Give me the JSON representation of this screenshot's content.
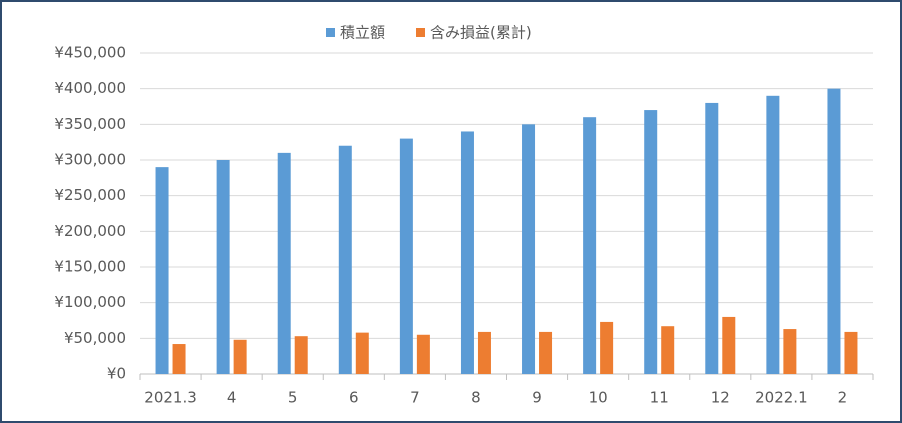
{
  "chart_data": {
    "type": "bar",
    "categories": [
      "2021.3",
      "4",
      "5",
      "6",
      "7",
      "8",
      "9",
      "10",
      "11",
      "12",
      "2022.1",
      "2"
    ],
    "series": [
      {
        "name": "積立額",
        "color": "#5b9bd5",
        "values": [
          290000,
          300000,
          310000,
          320000,
          330000,
          340000,
          350000,
          360000,
          370000,
          380000,
          390000,
          400000
        ]
      },
      {
        "name": "含み損益(累計)",
        "color": "#ed7d31",
        "values": [
          42000,
          48000,
          53000,
          58000,
          55000,
          59000,
          59000,
          73000,
          67000,
          80000,
          63000,
          59000
        ]
      }
    ],
    "ylim": [
      0,
      450000
    ],
    "yticks": [
      {
        "value": 0,
        "label": "¥0"
      },
      {
        "value": 50000,
        "label": "¥50,000"
      },
      {
        "value": 100000,
        "label": "¥100,000"
      },
      {
        "value": 150000,
        "label": "¥150,000"
      },
      {
        "value": 200000,
        "label": "¥200,000"
      },
      {
        "value": 250000,
        "label": "¥250,000"
      },
      {
        "value": 300000,
        "label": "¥300,000"
      },
      {
        "value": 350000,
        "label": "¥350,000"
      },
      {
        "value": 400000,
        "label": "¥400,000"
      },
      {
        "value": 450000,
        "label": "¥450,000"
      }
    ],
    "grid": true,
    "legend": "top"
  }
}
